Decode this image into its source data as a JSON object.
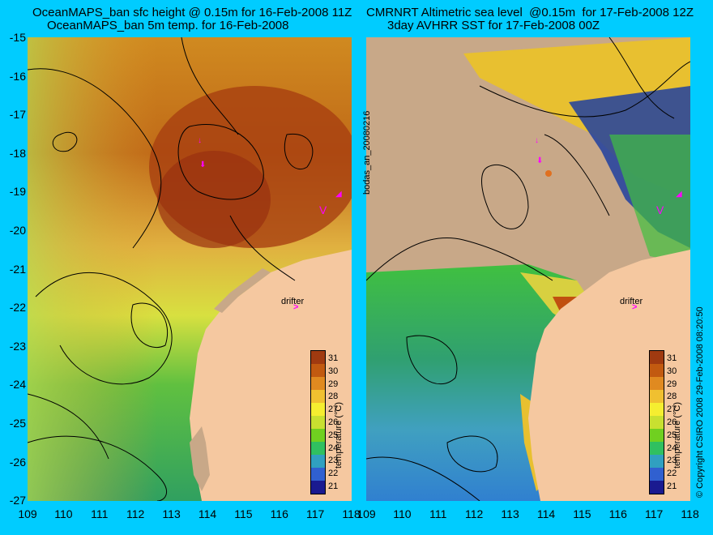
{
  "left": {
    "title_line1": "OceanMAPS_ban sfc height @ 0.15m for 16-Feb-2008 11Z",
    "title_line2": "OceanMAPS_ban 5m temp. for 16-Feb-2008"
  },
  "right": {
    "title_line1": "CMRNRT Altimetric sea level  @0.15m  for 17-Feb-2008 12Z",
    "title_line2": "3day AVHRR SST for 17-Feb-2008 00Z"
  },
  "y_ticks": [
    "-15",
    "-16",
    "-17",
    "-18",
    "-19",
    "-20",
    "-21",
    "-22",
    "-23",
    "-24",
    "-25",
    "-26",
    "-27"
  ],
  "x_ticks": [
    "109",
    "110",
    "111",
    "112",
    "113",
    "114",
    "115",
    "116",
    "117",
    "118"
  ],
  "divider_label": "bodas_an_20080216",
  "right_edge_label": "© Copyright CSIRO 2008   29-Feb-2008 08:20:50",
  "drifter_label": "drifter",
  "drifter_arrow": ">",
  "colorbar": {
    "title": "temperature (°C)",
    "ticks": [
      "31",
      "30",
      "29",
      "28",
      "27",
      "26",
      "25",
      "24",
      "23",
      "22",
      "21"
    ],
    "colors": [
      "#a03a10",
      "#c25a10",
      "#e08a20",
      "#f0c030",
      "#f5ee30",
      "#c8e030",
      "#70d020",
      "#30c060",
      "#30a0c0",
      "#3060d0",
      "#1a1a90"
    ]
  },
  "map_colors": {
    "land": "#f5c8a0",
    "cloud": "#c8a888",
    "background": "#00ccff"
  }
}
